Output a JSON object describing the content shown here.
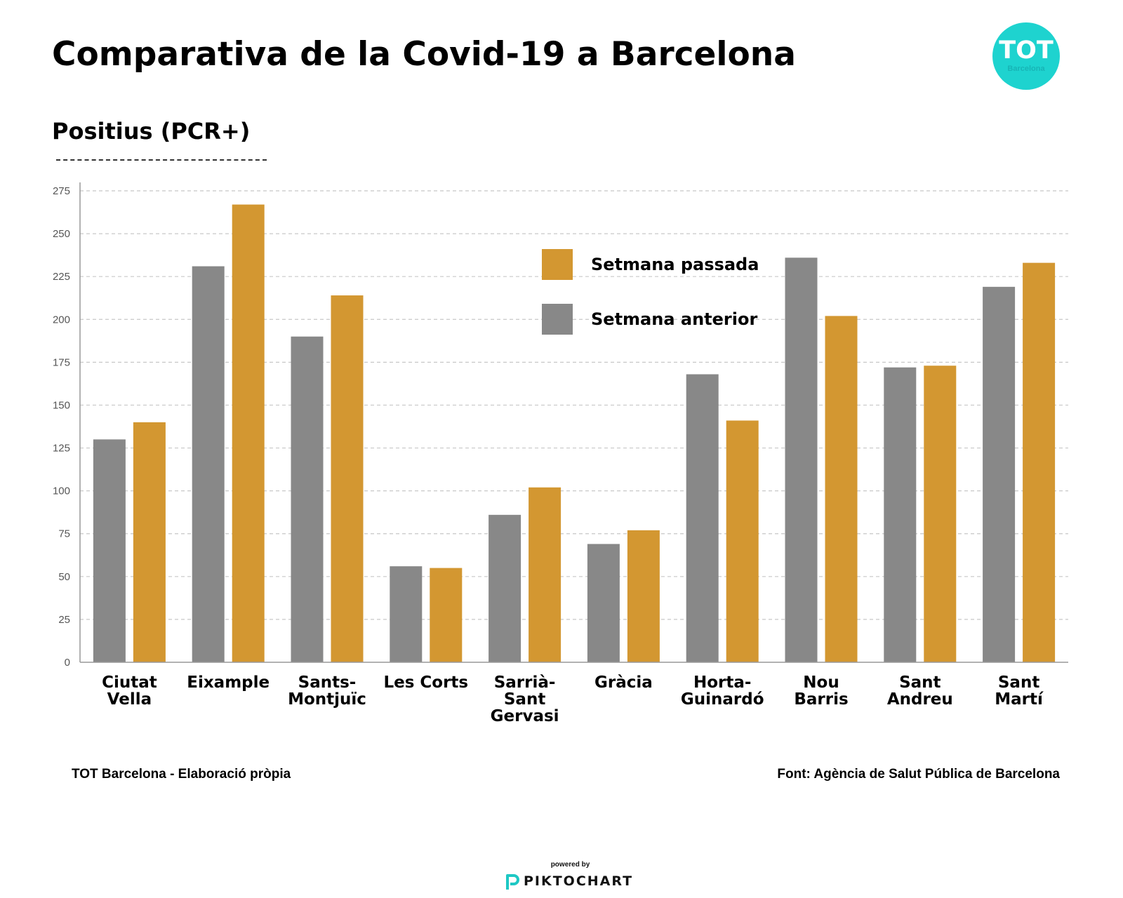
{
  "header": {
    "title": "Comparativa de la Covid-19 a Barcelona",
    "logo_main": "TOT",
    "logo_sub": "Barcelona",
    "logo_color": "#1ed3cf"
  },
  "chart_data": {
    "type": "bar",
    "title": "Positius (PCR+)",
    "xlabel": "",
    "ylabel": "",
    "ylim": [
      0,
      275
    ],
    "yticks": [
      0,
      25,
      50,
      75,
      100,
      125,
      150,
      175,
      200,
      225,
      250,
      275
    ],
    "grid": true,
    "legend_position": "top-center",
    "categories": [
      [
        "Ciutat",
        "Vella"
      ],
      [
        "Eixample"
      ],
      [
        "Sants-",
        "Montjuïc"
      ],
      [
        "Les Corts"
      ],
      [
        "Sarrià-",
        "Sant",
        "Gervasi"
      ],
      [
        "Gràcia"
      ],
      [
        "Horta-",
        "Guinardó"
      ],
      [
        "Nou",
        "Barris"
      ],
      [
        "Sant",
        "Andreu"
      ],
      [
        "Sant",
        "Martí"
      ]
    ],
    "series": [
      {
        "name": "Setmana anterior",
        "color": "#888888",
        "values": [
          130,
          231,
          190,
          56,
          86,
          69,
          168,
          236,
          172,
          219
        ]
      },
      {
        "name": "Setmana passada",
        "color": "#d39731",
        "values": [
          140,
          267,
          214,
          55,
          102,
          77,
          141,
          202,
          173,
          233
        ]
      }
    ],
    "legend_order": [
      1,
      0
    ]
  },
  "footer": {
    "left": "TOT Barcelona - Elaboració pròpia",
    "right": "Font: Agència de Salut Pública de Barcelona",
    "powered_by": "powered by",
    "brand": "PIKTOCHART",
    "brand_icon": "piktochart-p-icon",
    "brand_color": "#1ec8c4"
  }
}
